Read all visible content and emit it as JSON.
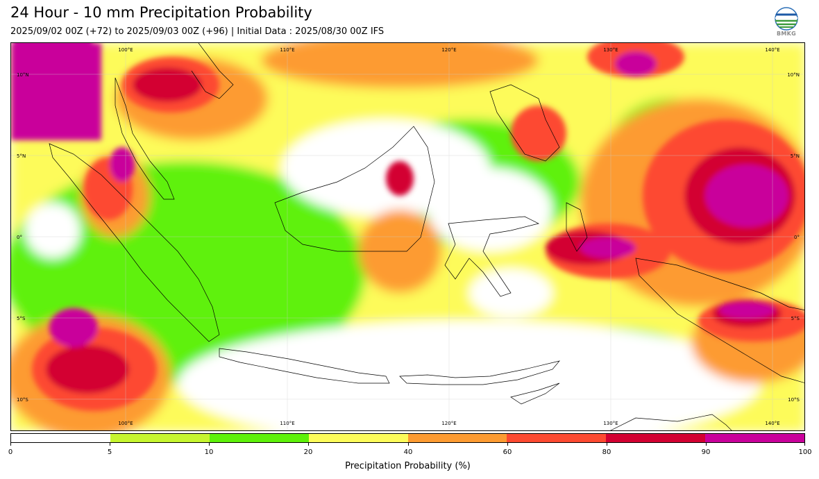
{
  "header": {
    "title": "24 Hour - 10 mm Precipitation Probability",
    "subtitle": "2025/09/02 00Z (+72) to 2025/09/03 00Z (+96) | Initial Data : 2025/08/30 00Z IFS"
  },
  "logo": {
    "text": "BMKG",
    "icon": "bmkg-logo-icon"
  },
  "map": {
    "lon_labels": [
      "100°E",
      "110°E",
      "120°E",
      "130°E",
      "140°E"
    ],
    "lat_labels": [
      "10°N",
      "5°N",
      "0°",
      "5°S",
      "10°S"
    ]
  },
  "colorbar": {
    "label": "Precipitation Probability (%)",
    "bounds": [
      "0",
      "5",
      "10",
      "20",
      "40",
      "60",
      "80",
      "90",
      "100"
    ],
    "colors": [
      "#ffffff",
      "#c6f52f",
      "#5ef10a",
      "#fdfb5a",
      "#fd9b32",
      "#fd4a31",
      "#d30032",
      "#c9009b"
    ]
  }
}
